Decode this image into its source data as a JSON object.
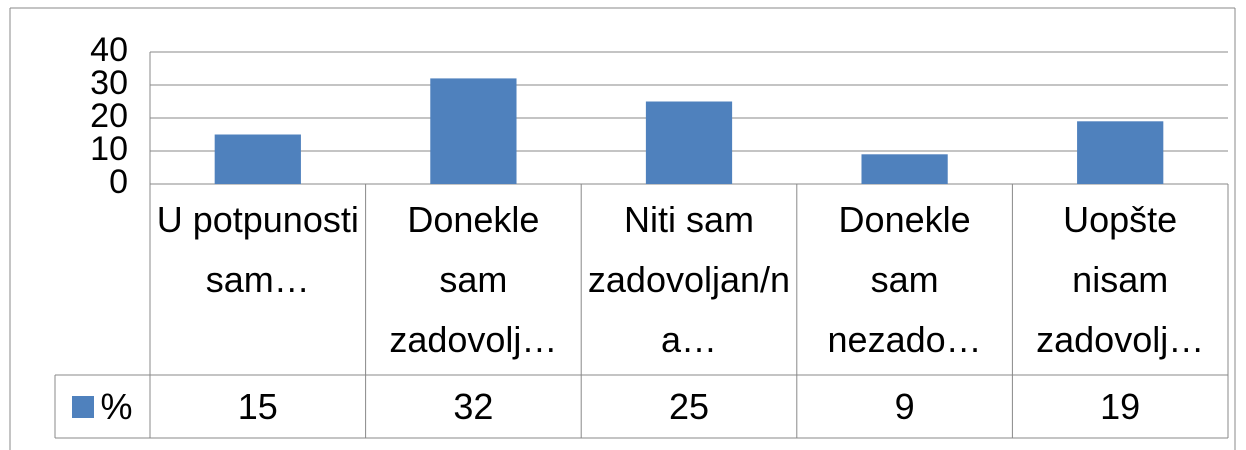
{
  "chart_data": {
    "type": "bar",
    "categories": [
      "U potpunosti sam…",
      "Donekle sam zadovolj…",
      "Niti sam zadovoljan/na…",
      "Donekle sam nezado…",
      "Uopšte nisam zadovolj…"
    ],
    "series": [
      {
        "name": "%",
        "color": "#4f81bd",
        "values": [
          15,
          32,
          25,
          9,
          19
        ]
      }
    ],
    "ylim": [
      0,
      40
    ],
    "yticks": [
      0,
      10,
      20,
      30,
      40
    ],
    "grid": true,
    "data_table": true
  }
}
